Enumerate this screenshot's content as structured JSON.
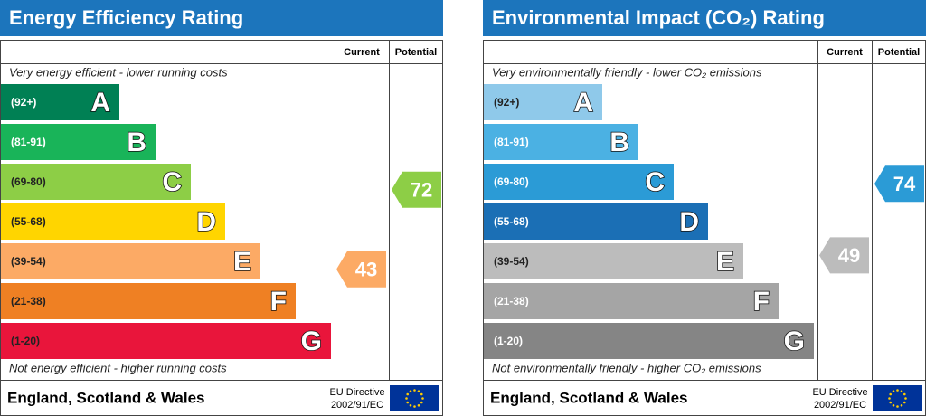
{
  "panels": [
    {
      "title": "Energy Efficiency Rating",
      "columns": [
        "Current",
        "Potential"
      ],
      "top_note": "Very energy efficient - lower running costs",
      "bands": [
        {
          "range": "(92+)",
          "letter": "A",
          "color": "#008054"
        },
        {
          "range": "(81-91)",
          "letter": "B",
          "color": "#19b459"
        },
        {
          "range": "(69-80)",
          "letter": "C",
          "color": "#8dce46"
        },
        {
          "range": "(55-68)",
          "letter": "D",
          "color": "#ffd500"
        },
        {
          "range": "(39-54)",
          "letter": "E",
          "color": "#fcaa65"
        },
        {
          "range": "(21-38)",
          "letter": "F",
          "color": "#ef8023"
        },
        {
          "range": "(1-20)",
          "letter": "G",
          "color": "#e9153b"
        }
      ],
      "bottom_note": "Not energy efficient - higher running costs",
      "current": "43",
      "potential": "72",
      "footer": "England, Scotland & Wales",
      "directive": [
        "EU Directive",
        "2002/91/EC"
      ]
    },
    {
      "title": "Environmental Impact (CO₂) Rating",
      "columns": [
        "Current",
        "Potential"
      ],
      "top_note": "Very environmentally friendly - lower CO₂ emissions",
      "bands": [
        {
          "range": "(92+)",
          "letter": "A",
          "color": "#8fc9ea"
        },
        {
          "range": "(81-91)",
          "letter": "B",
          "color": "#4bb1e3"
        },
        {
          "range": "(69-80)",
          "letter": "C",
          "color": "#2b9bd6"
        },
        {
          "range": "(55-68)",
          "letter": "D",
          "color": "#1b6fb5"
        },
        {
          "range": "(39-54)",
          "letter": "E",
          "color": "#bcbcbc"
        },
        {
          "range": "(21-38)",
          "letter": "F",
          "color": "#a5a5a5"
        },
        {
          "range": "(1-20)",
          "letter": "G",
          "color": "#858585"
        }
      ],
      "bottom_note": "Not environmentally friendly - higher CO₂ emissions",
      "current": "49",
      "potential": "74",
      "footer": "England, Scotland & Wales",
      "directive": [
        "EU Directive",
        "2002/91/EC"
      ]
    }
  ]
}
